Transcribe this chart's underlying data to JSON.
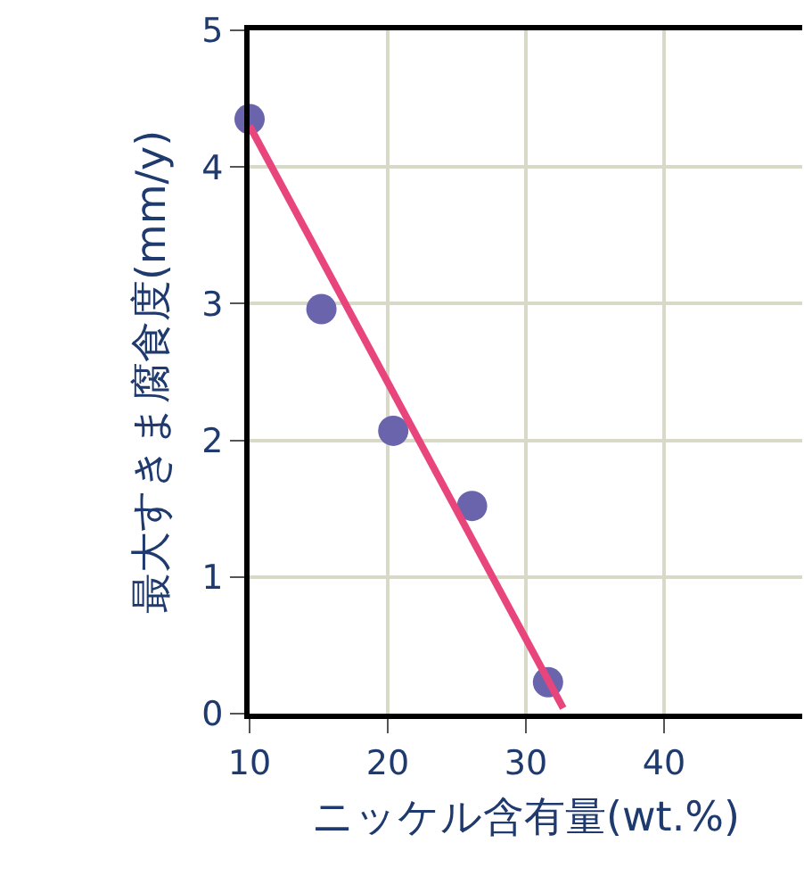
{
  "chart_data": {
    "type": "scatter",
    "xlabel": "ニッケル含有量(wt.%)",
    "ylabel": "最大すきま腐食度(mm/y)",
    "x": [
      10,
      15.2,
      20.4,
      26.1,
      31.6
    ],
    "series": [
      {
        "color": "#6a64ad",
        "values": [
          4.35,
          2.96,
          2.07,
          1.52,
          0.23
        ],
        "marker": "circle"
      },
      {
        "type": "line",
        "color": "#e8457c",
        "x": [
          10,
          32.7
        ],
        "values": [
          4.3,
          0.04
        ],
        "marker": "none",
        "line_style": "solid"
      }
    ],
    "xlim": [
      10,
      50
    ],
    "xticks": [
      10,
      20,
      30,
      40
    ],
    "ylim": [
      0,
      5
    ],
    "yticks": [
      0,
      1,
      2,
      3,
      4,
      5
    ],
    "grid": true
  }
}
